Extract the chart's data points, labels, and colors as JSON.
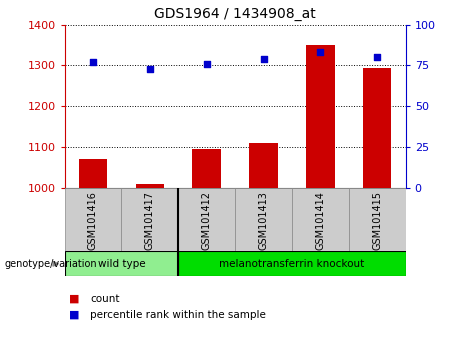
{
  "title": "GDS1964 / 1434908_at",
  "samples": [
    "GSM101416",
    "GSM101417",
    "GSM101412",
    "GSM101413",
    "GSM101414",
    "GSM101415"
  ],
  "counts": [
    1070,
    1010,
    1095,
    1110,
    1350,
    1295
  ],
  "percentiles": [
    77,
    73,
    76,
    79,
    83,
    80
  ],
  "ylim_left": [
    1000,
    1400
  ],
  "ylim_right": [
    0,
    100
  ],
  "yticks_left": [
    1000,
    1100,
    1200,
    1300,
    1400
  ],
  "yticks_right": [
    0,
    25,
    50,
    75,
    100
  ],
  "bar_color": "#cc0000",
  "dot_color": "#0000cc",
  "groups": [
    {
      "label": "wild type",
      "indices": [
        0,
        1
      ],
      "color": "#90ee90"
    },
    {
      "label": "melanotransferrin knockout",
      "indices": [
        2,
        3,
        4,
        5
      ],
      "color": "#00dd00"
    }
  ],
  "group_label": "genotype/variation",
  "legend_count": "count",
  "legend_percentile": "percentile rank within the sample",
  "bg_color": "#ffffff",
  "left_tick_color": "#cc0000",
  "right_tick_color": "#0000cc",
  "bar_width": 0.5,
  "cell_bg": "#cccccc",
  "separator_col": 2
}
